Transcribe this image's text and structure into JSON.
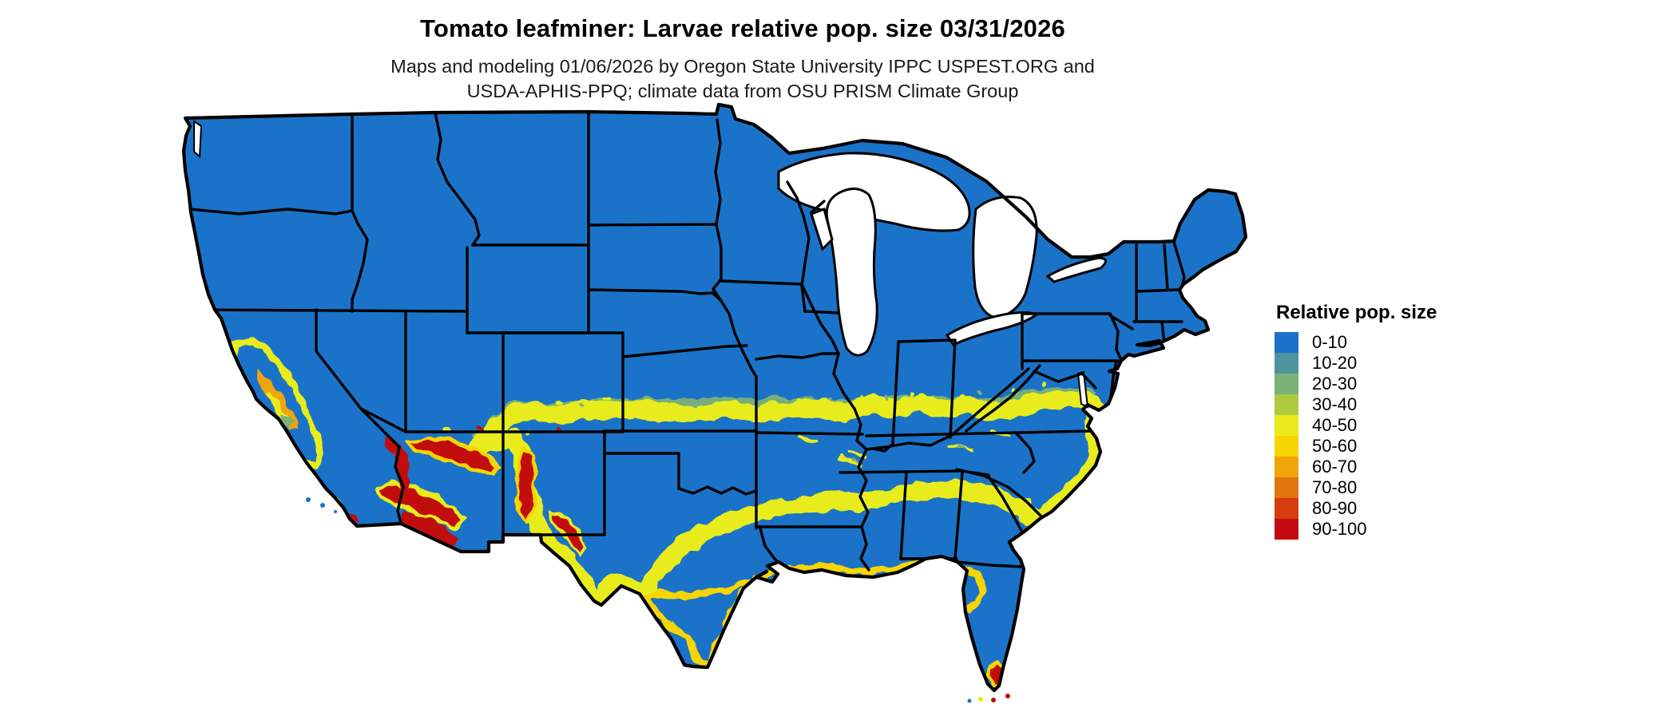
{
  "header": {
    "title": "Tomato leafminer: Larvae relative pop. size 03/31/2026",
    "subtitle_line1": "Maps and modeling 01/06/2026 by Oregon State University IPPC USPEST.ORG and",
    "subtitle_line2": "USDA-APHIS-PPQ; climate data from OSU PRISM Climate Group"
  },
  "legend": {
    "title": "Relative pop. size",
    "items": [
      {
        "label": "0-10",
        "color": "#1a73c8"
      },
      {
        "label": "10-20",
        "color": "#4f93a0"
      },
      {
        "label": "20-30",
        "color": "#7bb277"
      },
      {
        "label": "30-40",
        "color": "#aecb3f"
      },
      {
        "label": "40-50",
        "color": "#e9ec1a"
      },
      {
        "label": "50-60",
        "color": "#f7d500"
      },
      {
        "label": "60-70",
        "color": "#efa50b"
      },
      {
        "label": "70-80",
        "color": "#e0750d"
      },
      {
        "label": "80-90",
        "color": "#d53c0f"
      },
      {
        "label": "90-100",
        "color": "#c20a10"
      }
    ]
  },
  "map": {
    "description": "Continental US raster map of tomato leafminer larvae relative population size",
    "base_color": "#1a73c8",
    "border_color": "#000000",
    "high_risk_color": "#c20a10"
  }
}
